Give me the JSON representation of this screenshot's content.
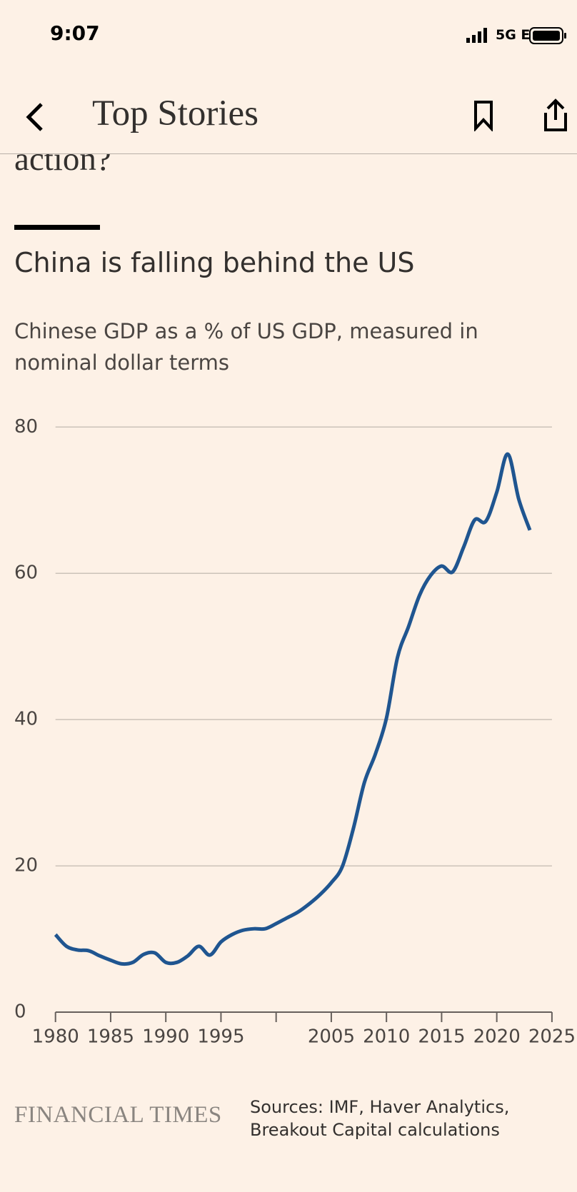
{
  "status_bar": {
    "time": "9:07",
    "network": "5G E"
  },
  "nav": {
    "title": "Top Stories"
  },
  "article": {
    "headline_fragment": "action?"
  },
  "chart_data": {
    "type": "line",
    "title": "China is falling behind the US",
    "subtitle": "Chinese GDP as a % of US GDP, measured in nominal dollar terms",
    "x": [
      1980,
      1981,
      1982,
      1983,
      1984,
      1985,
      1986,
      1987,
      1988,
      1989,
      1990,
      1991,
      1992,
      1993,
      1994,
      1995,
      1996,
      1997,
      1998,
      1999,
      2000,
      2001,
      2002,
      2003,
      2004,
      2005,
      2006,
      2007,
      2008,
      2009,
      2010,
      2011,
      2012,
      2013,
      2014,
      2015,
      2016,
      2017,
      2018,
      2019,
      2020,
      2021,
      2022,
      2023
    ],
    "series": [
      {
        "name": "Chinese GDP as % of US GDP",
        "color": "#1f5590",
        "values": [
          10.6,
          9.0,
          8.5,
          8.4,
          7.7,
          7.1,
          6.6,
          6.8,
          7.9,
          8.1,
          6.8,
          6.8,
          7.7,
          9.0,
          7.8,
          9.6,
          10.6,
          11.2,
          11.4,
          11.4,
          12.1,
          12.9,
          13.7,
          14.8,
          16.1,
          17.7,
          19.9,
          25.1,
          31.4,
          35.3,
          40.2,
          48.5,
          52.7,
          57.0,
          59.7,
          61.0,
          60.2,
          63.6,
          67.3,
          67.1,
          71.1,
          76.3,
          70.1,
          65.9
        ]
      }
    ],
    "xlim": [
      1980,
      2025
    ],
    "xticks": [
      1980,
      1985,
      1990,
      1995,
      {
        "value": 2000,
        "label": null
      },
      2005,
      2010,
      2015,
      2020,
      2025
    ],
    "ylim": [
      0,
      80
    ],
    "yticks": [
      0,
      20,
      40,
      60,
      80
    ],
    "grid": true,
    "source": "Sources: IMF, Haver Analytics, Breakout Capital calculations"
  },
  "footer": {
    "brand": "FINANCIAL TIMES"
  }
}
